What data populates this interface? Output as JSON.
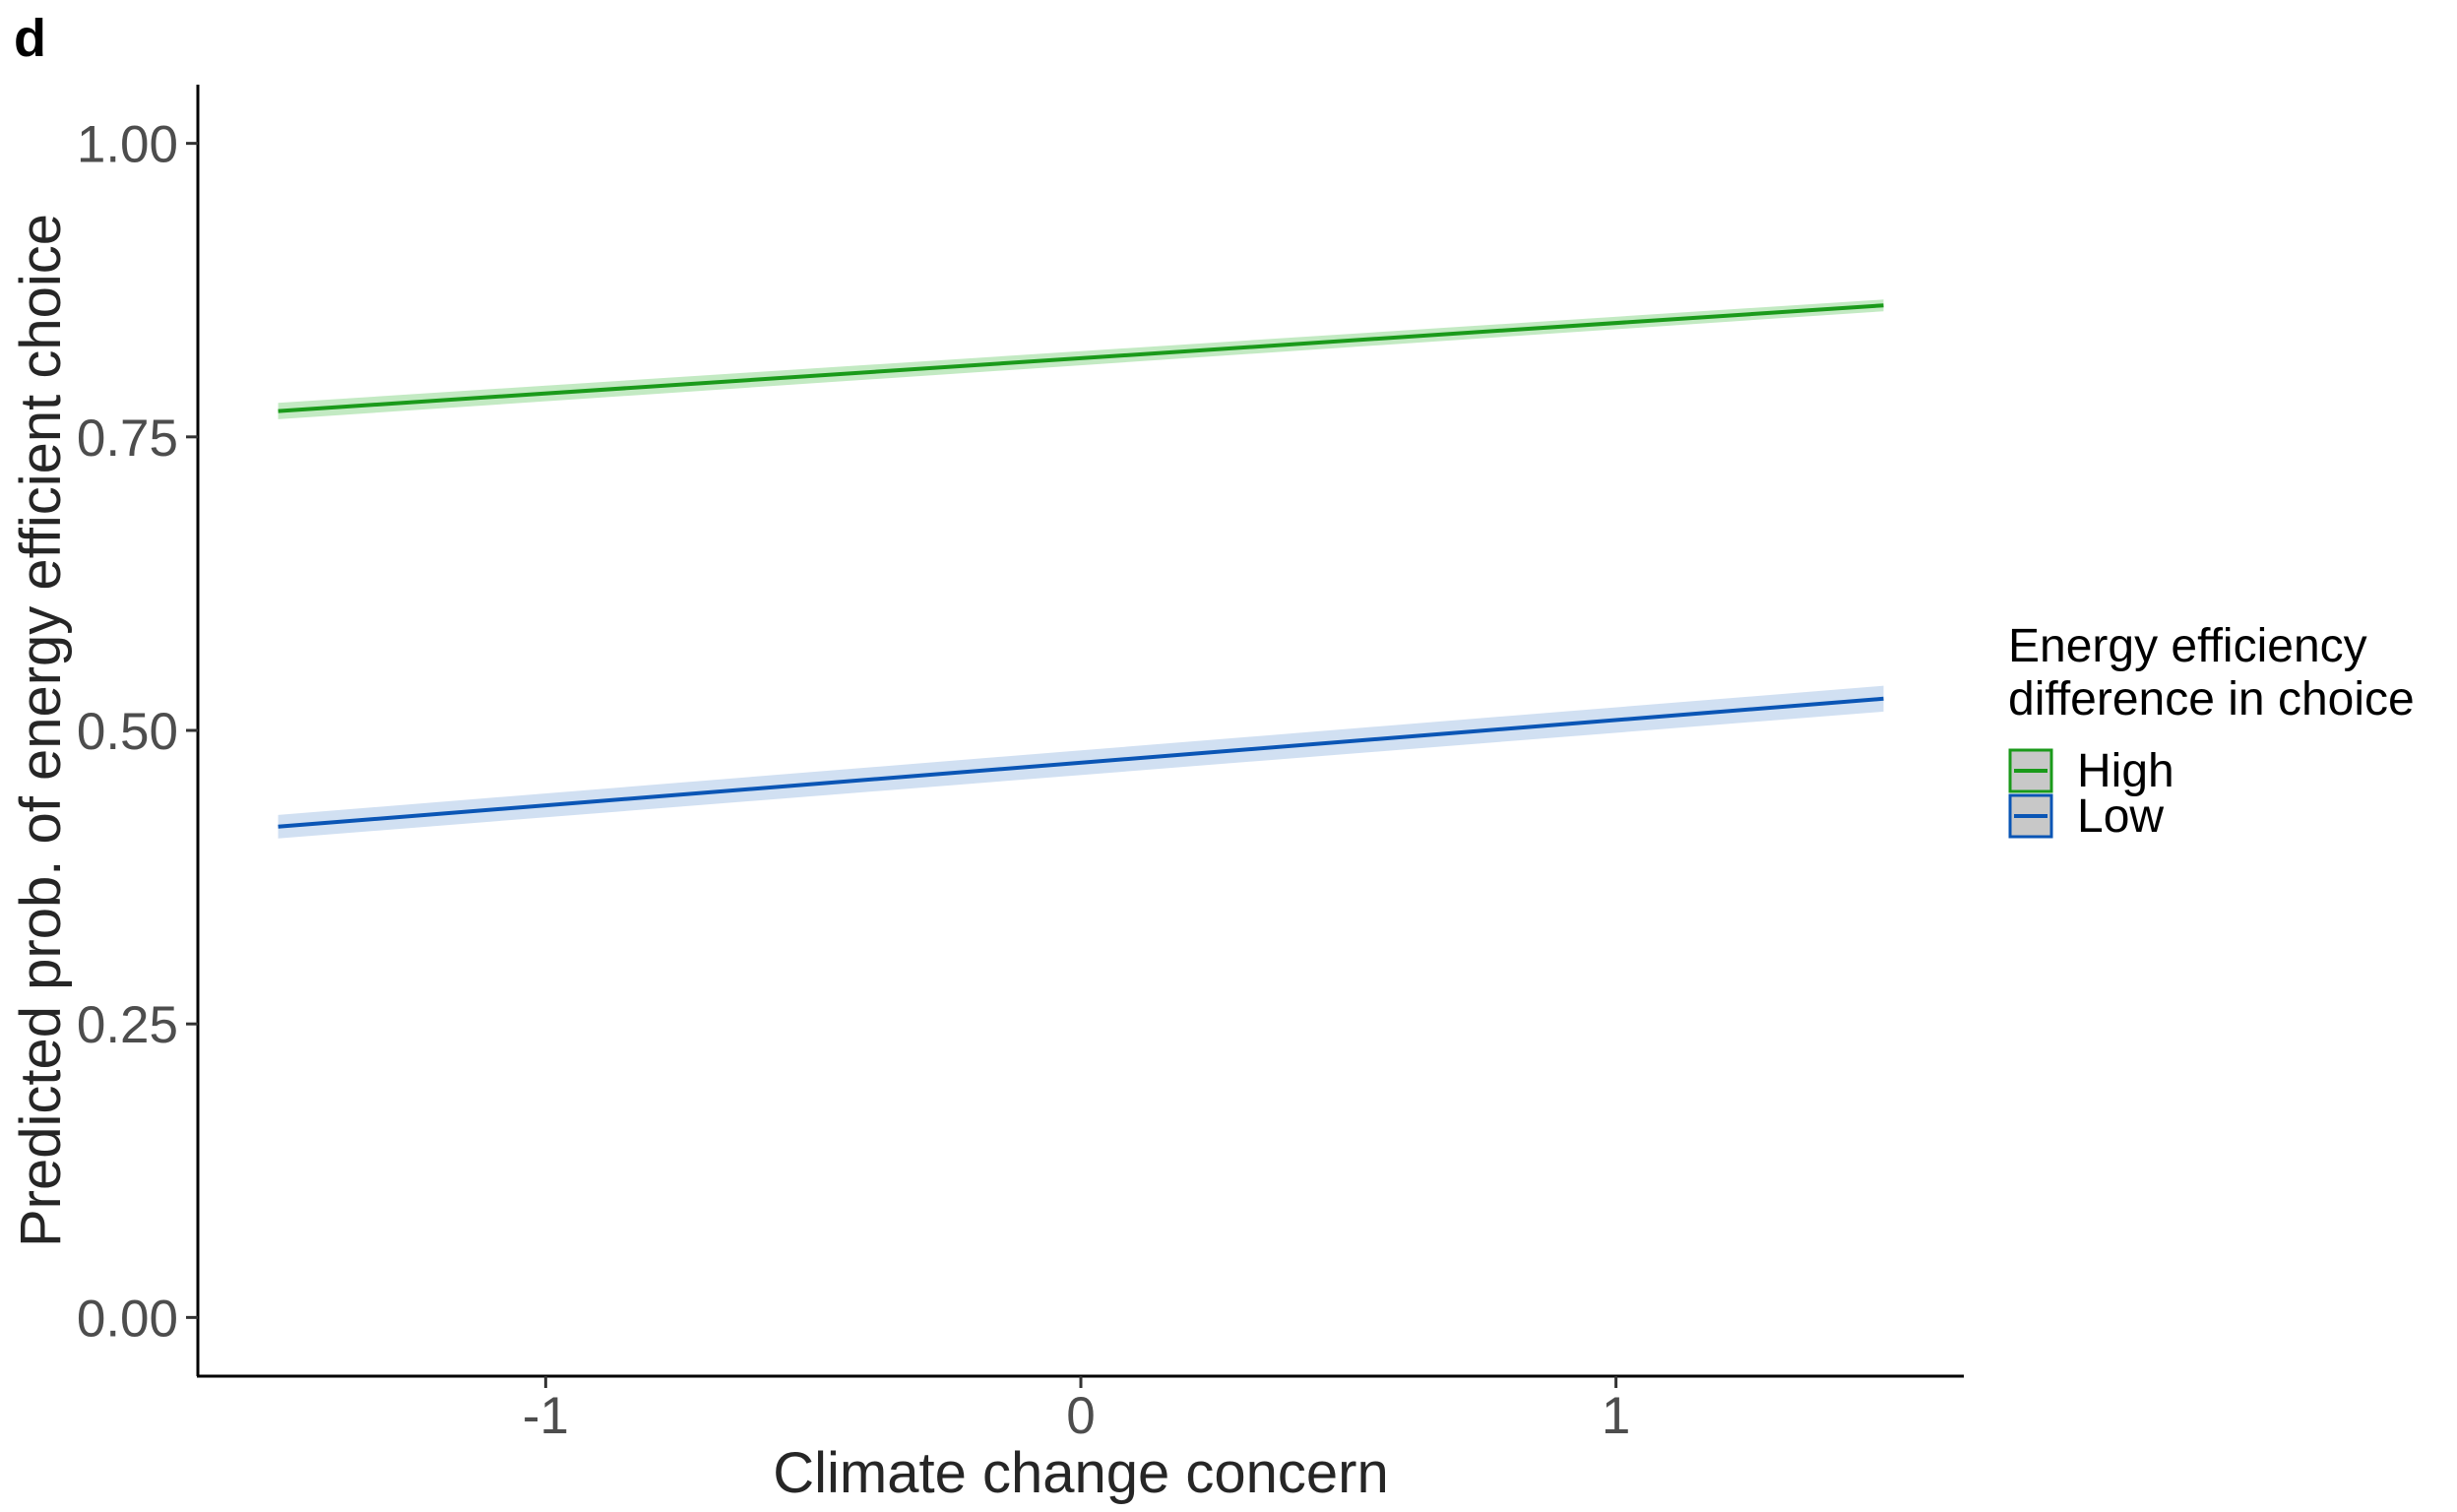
{
  "panel_label": "d",
  "chart_data": {
    "type": "line",
    "title": "",
    "xlabel": "Climate change concern",
    "ylabel": "Predicted prob. of energy efficient choice",
    "xlim": [
      -1.65,
      1.65
    ],
    "ylim": [
      -0.05,
      1.05
    ],
    "x_ticks": [
      -1,
      0,
      1
    ],
    "x_tick_labels": [
      "-1",
      "0",
      "1"
    ],
    "y_ticks": [
      0,
      0.25,
      0.5,
      0.75,
      1.0
    ],
    "y_tick_labels": [
      "0.00",
      "0.25",
      "0.50",
      "0.75",
      "1.00"
    ],
    "grid": false,
    "legend": {
      "title_lines": [
        "Energy efficiency",
        "difference in choice"
      ],
      "position": "right"
    },
    "series": [
      {
        "name": "High",
        "color": "#1a9a1a",
        "ribbon_color": "#b9e6b9",
        "x": [
          -1.5,
          1.5
        ],
        "y": [
          0.772,
          0.862
        ],
        "ci_lower": [
          0.765,
          0.857
        ],
        "ci_upper": [
          0.779,
          0.867
        ]
      },
      {
        "name": "Low",
        "color": "#0a55b5",
        "ribbon_color": "#c9daf0",
        "x": [
          -1.5,
          1.5
        ],
        "y": [
          0.418,
          0.527
        ],
        "ci_lower": [
          0.408,
          0.516
        ],
        "ci_upper": [
          0.428,
          0.538
        ]
      }
    ]
  }
}
